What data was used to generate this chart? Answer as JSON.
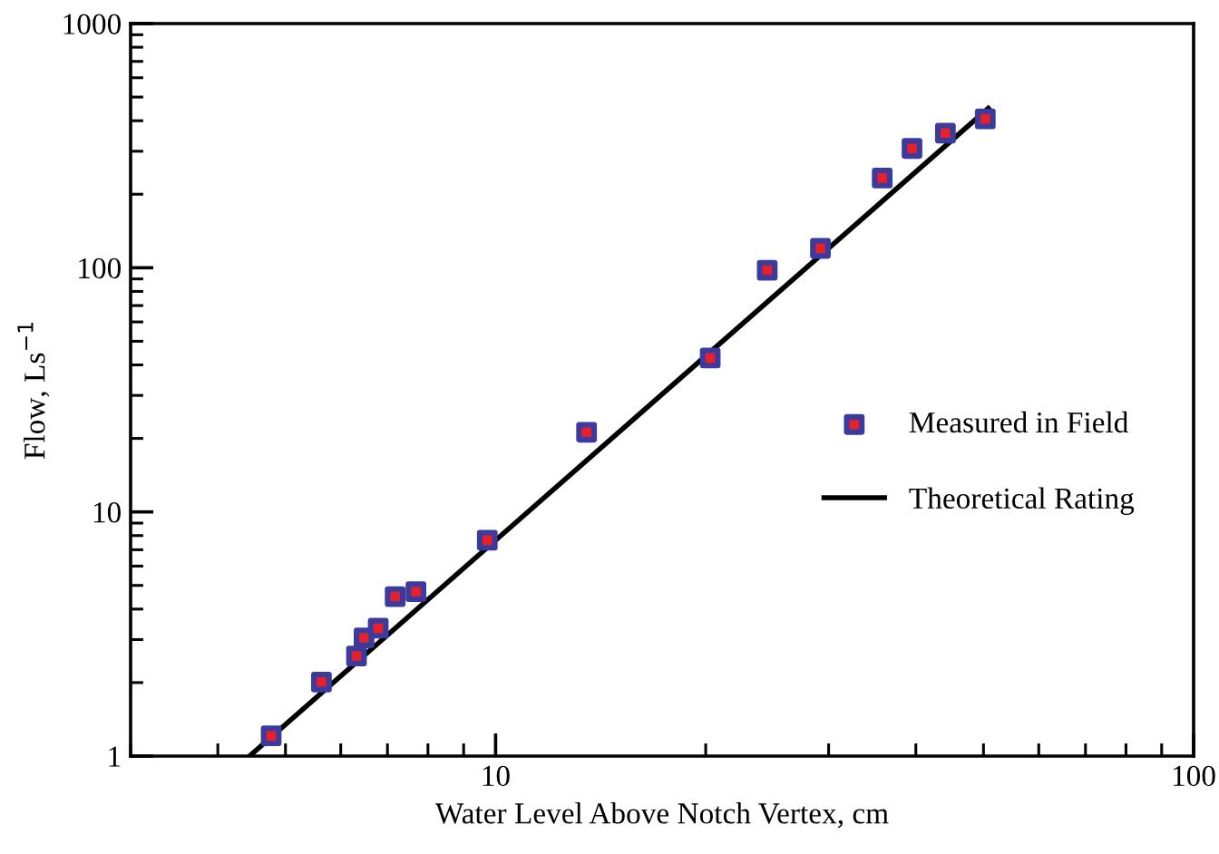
{
  "chart_data": {
    "type": "scatter",
    "xlabel": "Water Level Above Notch Vertex, cm",
    "ylabel": "Flow, Ls$^{−1}$",
    "log": "xy",
    "xlim": [
      3,
      100
    ],
    "xticks": [
      10,
      100
    ],
    "ylim": [
      1,
      1000
    ],
    "yticks": [
      1,
      10,
      100,
      1000
    ],
    "grid": false,
    "legend": "right",
    "series": [
      {
        "name": "Measured in Field",
        "marker": "square",
        "color": "#3b3b9e",
        "x": [
          4.77,
          5.63,
          6.32,
          6.48,
          6.79,
          7.18,
          7.69,
          9.73,
          13.5,
          20.3,
          24.5,
          29.2,
          35.8,
          39.5,
          44.1,
          50.3
        ],
        "values": [
          1.21,
          2.01,
          2.57,
          3.05,
          3.34,
          4.5,
          4.71,
          7.66,
          21.2,
          42.7,
          97.7,
          120,
          233,
          308,
          356,
          407
        ]
      },
      {
        "name": "Theoretical Rating",
        "type": "line",
        "color": "#000000",
        "x": [
          4.44,
          50.8
        ],
        "values": [
          1,
          450
        ],
        "line_style": "solid",
        "marker": "none"
      }
    ]
  }
}
